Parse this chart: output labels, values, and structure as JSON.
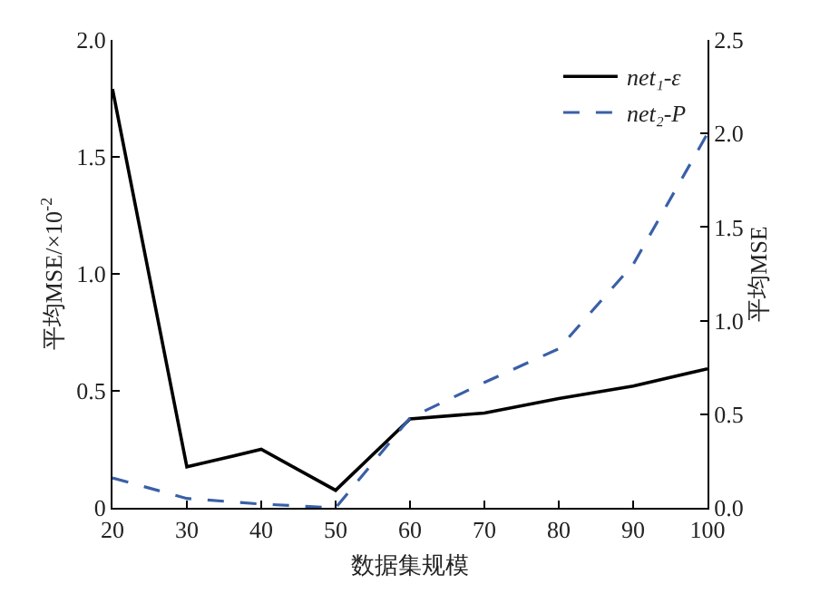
{
  "chart_data": {
    "type": "line",
    "xlabel": "数据集规模",
    "ylabel": "平均MSE/×10$^{-2}$",
    "y2label": "平均MSE",
    "x": [
      20,
      30,
      40,
      50,
      60,
      70,
      80,
      90,
      100
    ],
    "series": [
      {
        "name": "net₁-ε",
        "color": "#000000",
        "line_style": "solid",
        "values": [
          1.79,
          0.175,
          0.25,
          0.075,
          0.38,
          0.405,
          0.467,
          0.52,
          0.594
        ]
      },
      {
        "name": "net₂-P",
        "color": "#3a5fa8",
        "line_style": "dashed",
        "axis": "y2",
        "values": [
          0.16,
          0.05,
          0.02,
          0.0,
          0.48,
          0.67,
          0.85,
          1.3,
          2.0
        ]
      }
    ],
    "xlim": [
      20,
      100
    ],
    "xticks": [
      20,
      30,
      40,
      50,
      60,
      70,
      80,
      90,
      100
    ],
    "ylim": [
      0,
      2.0
    ],
    "yticks": [
      {
        "value": 0,
        "label": "0"
      },
      {
        "value": 0.5,
        "label": "0.5"
      },
      {
        "value": 1.0,
        "label": "1.0"
      },
      {
        "value": 1.5,
        "label": "1.5"
      },
      {
        "value": 2.0,
        "label": "2.0"
      }
    ],
    "y2lim": [
      0,
      2.5
    ],
    "y2ticks": [
      {
        "value": 0,
        "label": "0.0"
      },
      {
        "value": 0.5,
        "label": "0.5"
      },
      {
        "value": 1.0,
        "label": "1.0"
      },
      {
        "value": 1.5,
        "label": "1.5"
      },
      {
        "value": 2.0,
        "label": "2.0"
      },
      {
        "value": 2.5,
        "label": "2.5"
      }
    ],
    "legend": "top right",
    "marker": "none"
  }
}
